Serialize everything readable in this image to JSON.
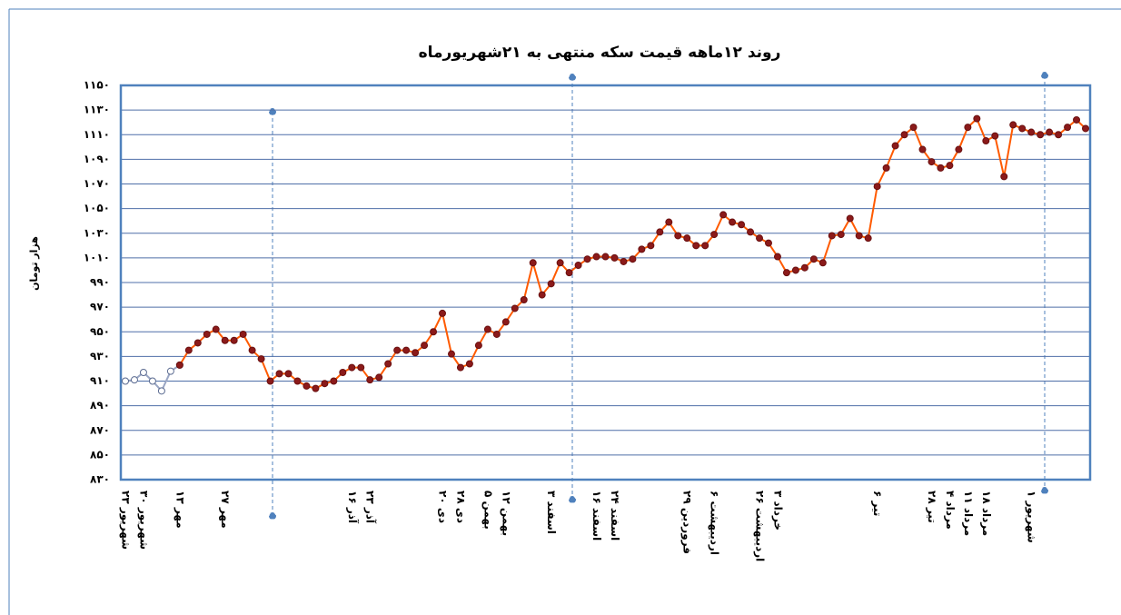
{
  "chart_data": {
    "type": "line",
    "title": "روند ۱۲ماهه قیمت سکه منتهی به ۲۱شهریورماه",
    "y_label": "هزار تومان",
    "categories": [
      "۲۳ شهریور",
      null,
      "۳۰ شهریور",
      null,
      null,
      null,
      "۱۳ مهر",
      null,
      null,
      null,
      null,
      "۲۷ مهر",
      null,
      null,
      null,
      null,
      null,
      null,
      null,
      null,
      null,
      null,
      null,
      null,
      null,
      "۱۶ آذر",
      null,
      "۲۳ آذر",
      null,
      null,
      null,
      null,
      null,
      null,
      null,
      "۲۰ دی",
      null,
      "۲۸ دی",
      null,
      null,
      "۵ بهمن",
      null,
      "۱۲ بهمن",
      null,
      null,
      null,
      null,
      "۳ اسفند",
      null,
      null,
      null,
      null,
      "۱۶ اسفند",
      null,
      "۲۴ اسفند",
      null,
      null,
      null,
      null,
      null,
      null,
      null,
      "۲۹ فروردین",
      null,
      null,
      "۶ اردیبهشت",
      null,
      null,
      null,
      null,
      "۲۶ اردیبهشت",
      null,
      "۳ خرداد",
      null,
      null,
      null,
      null,
      null,
      null,
      null,
      null,
      null,
      null,
      "۶ تیر",
      null,
      null,
      null,
      null,
      null,
      "۲۸ تیر",
      null,
      "۴ مرداد",
      null,
      "۱۱ مرداد",
      null,
      "۱۸ مرداد",
      null,
      null,
      null,
      null,
      "۱ شهریور",
      null,
      null,
      null,
      null,
      null,
      null
    ],
    "series": [
      {
        "color": "#9aa6c4",
        "marker_fill": "#ffffff",
        "values": [
          910,
          911,
          917,
          910,
          902,
          918,
          923,
          null,
          null,
          null,
          null,
          null,
          null,
          null,
          null,
          null,
          null,
          null,
          null,
          null,
          null,
          null,
          null,
          null,
          null,
          null,
          null,
          null,
          null,
          null,
          null,
          null,
          null,
          null,
          null,
          null,
          null,
          null,
          null,
          null,
          null,
          null,
          null,
          null,
          null,
          null,
          null,
          null,
          null,
          null,
          null,
          null,
          null,
          null,
          null,
          null,
          null,
          null,
          null,
          null,
          null,
          null,
          null,
          null,
          null,
          null,
          null,
          null,
          null,
          null,
          null,
          null,
          null,
          null,
          null,
          null,
          null,
          null,
          null,
          null,
          null,
          null,
          null,
          null,
          null,
          null,
          null,
          null,
          null,
          null,
          null,
          null,
          null,
          null,
          null,
          null,
          null,
          null,
          null,
          null,
          null,
          null,
          null,
          null,
          null,
          null,
          null
        ]
      },
      {
        "color": "#ff5a00",
        "marker_fill": "#8b1a1a",
        "values": [
          null,
          null,
          null,
          null,
          null,
          null,
          923,
          935,
          941,
          948,
          952,
          943,
          943,
          948,
          935,
          928,
          910,
          916,
          916,
          910,
          906,
          904,
          908,
          910,
          917,
          921,
          921,
          911,
          913,
          924,
          935,
          935,
          933,
          939,
          950,
          965,
          932,
          921,
          924,
          939,
          952,
          948,
          958,
          969,
          976,
          1006,
          980,
          989,
          1006,
          998,
          1004,
          1009,
          1011,
          1011,
          1010,
          1007,
          1009,
          1017,
          1020,
          1031,
          1039,
          1028,
          1026,
          1020,
          1020,
          1029,
          1045,
          1039,
          1037,
          1031,
          1026,
          1022,
          1011,
          998,
          1000,
          1002,
          1009,
          1006,
          1028,
          1029,
          1042,
          1028,
          1026,
          1068,
          1083,
          1101,
          1110,
          1116,
          1098,
          1088,
          1083,
          1085,
          1098,
          1116,
          1123,
          1105,
          1109,
          1076,
          1118,
          1115,
          1112,
          1110,
          1112,
          1110,
          1116,
          1122,
          1115
        ]
      }
    ],
    "ylim": [
      830,
      1150
    ],
    "yticks": [
      {
        "value": 830,
        "label": "۸۳۰"
      },
      {
        "value": 850,
        "label": "۸۵۰"
      },
      {
        "value": 870,
        "label": "۸۷۰"
      },
      {
        "value": 890,
        "label": "۸۹۰"
      },
      {
        "value": 910,
        "label": "۹۱۰"
      },
      {
        "value": 930,
        "label": "۹۳۰"
      },
      {
        "value": 950,
        "label": "۹۵۰"
      },
      {
        "value": 970,
        "label": "۹۷۰"
      },
      {
        "value": 990,
        "label": "۹۹۰"
      },
      {
        "value": 1010,
        "label": "۱۰۱۰"
      },
      {
        "value": 1030,
        "label": "۱۰۳۰"
      },
      {
        "value": 1050,
        "label": "۱۰۵۰"
      },
      {
        "value": 1070,
        "label": "۱۰۷۰"
      },
      {
        "value": 1090,
        "label": "۱۰۹۰"
      },
      {
        "value": 1110,
        "label": "۱۱۱۰"
      },
      {
        "value": 1130,
        "label": "۱۱۳۰"
      },
      {
        "value": 1150,
        "label": "۱۱۵۰"
      }
    ],
    "grid": true
  }
}
